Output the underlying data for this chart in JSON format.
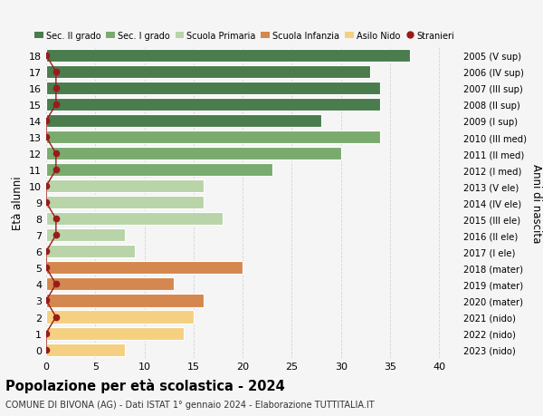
{
  "ages": [
    18,
    17,
    16,
    15,
    14,
    13,
    12,
    11,
    10,
    9,
    8,
    7,
    6,
    5,
    4,
    3,
    2,
    1,
    0
  ],
  "values": [
    37,
    33,
    34,
    34,
    28,
    34,
    30,
    23,
    16,
    16,
    18,
    8,
    9,
    20,
    13,
    16,
    15,
    14,
    8
  ],
  "stranieri_x": [
    0,
    1,
    1,
    1,
    0,
    0,
    1,
    1,
    0,
    0,
    1,
    1,
    0,
    0,
    1,
    0,
    1,
    0,
    0
  ],
  "right_labels": [
    "2005 (V sup)",
    "2006 (IV sup)",
    "2007 (III sup)",
    "2008 (II sup)",
    "2009 (I sup)",
    "2010 (III med)",
    "2011 (II med)",
    "2012 (I med)",
    "2013 (V ele)",
    "2014 (IV ele)",
    "2015 (III ele)",
    "2016 (II ele)",
    "2017 (I ele)",
    "2018 (mater)",
    "2019 (mater)",
    "2020 (mater)",
    "2021 (nido)",
    "2022 (nido)",
    "2023 (nido)"
  ],
  "bar_colors_by_age": {
    "18": "#4a7c4e",
    "17": "#4a7c4e",
    "16": "#4a7c4e",
    "15": "#4a7c4e",
    "14": "#4a7c4e",
    "13": "#7aab6e",
    "12": "#7aab6e",
    "11": "#7aab6e",
    "10": "#b8d4a8",
    "9": "#b8d4a8",
    "8": "#b8d4a8",
    "7": "#b8d4a8",
    "6": "#b8d4a8",
    "5": "#d4874e",
    "4": "#d4874e",
    "3": "#d4874e",
    "2": "#f5d080",
    "1": "#f5d080",
    "0": "#f5d080"
  },
  "stranieri_color": "#9b1a1a",
  "xlim": [
    0,
    42
  ],
  "ylim": [
    -0.5,
    18.5
  ],
  "ylabel": "Età alunni",
  "right_ylabel": "Anni di nascita",
  "title": "Popolazione per età scolastica - 2024",
  "subtitle": "COMUNE DI BIVONA (AG) - Dati ISTAT 1° gennaio 2024 - Elaborazione TUTTITALIA.IT",
  "legend_labels": [
    "Sec. II grado",
    "Sec. I grado",
    "Scuola Primaria",
    "Scuola Infanzia",
    "Asilo Nido",
    "Stranieri"
  ],
  "legend_colors": [
    "#4a7c4e",
    "#7aab6e",
    "#b8d4a8",
    "#d4874e",
    "#f5d080",
    "#9b1a1a"
  ],
  "bg_color": "#f5f5f5",
  "grid_color": "#cccccc",
  "xticks": [
    0,
    5,
    10,
    15,
    20,
    25,
    30,
    35,
    40
  ]
}
